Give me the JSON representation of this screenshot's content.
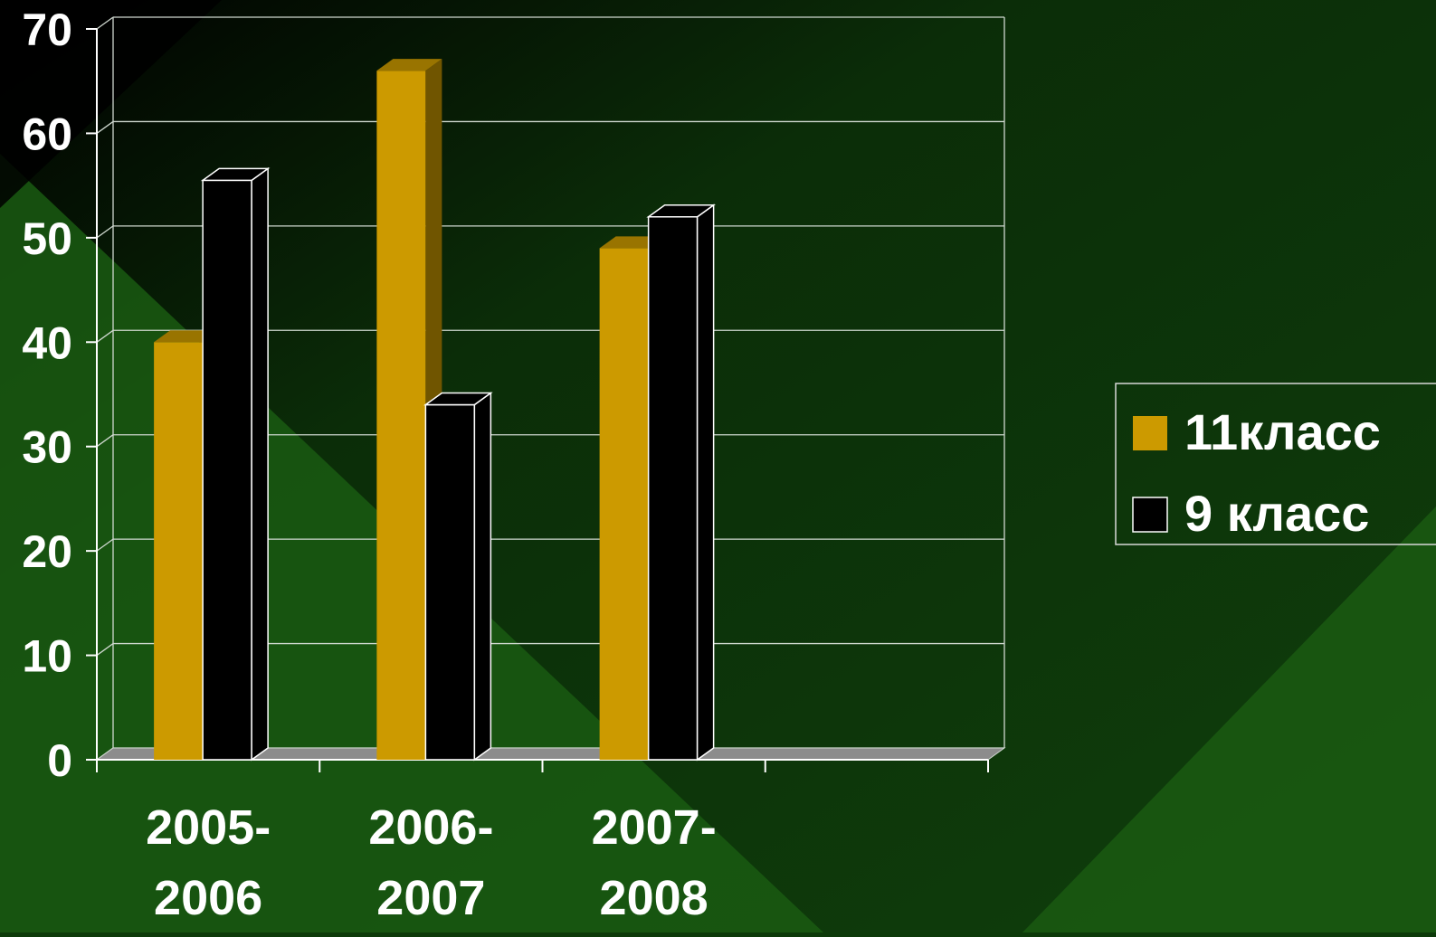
{
  "chart_data": {
    "type": "bar",
    "title": "",
    "xlabel": "",
    "ylabel": "",
    "categories": [
      [
        "2005-",
        "2006"
      ],
      [
        "2006-",
        "2007"
      ],
      [
        "2007-",
        "2008"
      ],
      [
        "",
        ""
      ]
    ],
    "series": [
      {
        "name": "11класс",
        "color": "#cc9a00",
        "values": [
          40,
          66,
          49,
          null
        ]
      },
      {
        "name": "9 класс",
        "color": "#000000",
        "values": [
          55.5,
          34,
          52,
          null
        ]
      }
    ],
    "ylim": [
      0,
      70
    ],
    "yticks": [
      0,
      10,
      20,
      30,
      40,
      50,
      60,
      70
    ],
    "grid": true,
    "legend_position": "right",
    "style": "3d-clustered-column"
  },
  "colors": {
    "background_dark": "#000000",
    "background_green": "#1a5a12",
    "gridline": "#cfd8cf",
    "floor": "#8c8c8c",
    "bar_edge": "#ffffff"
  }
}
